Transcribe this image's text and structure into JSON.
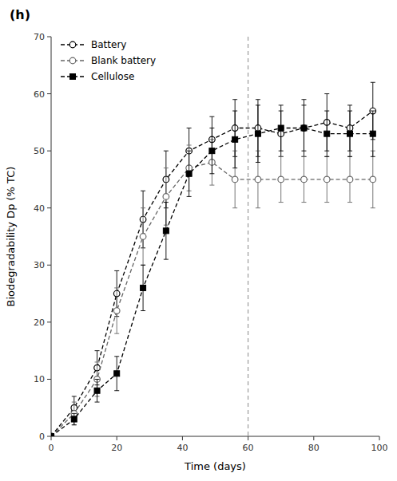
{
  "chart_data": {
    "type": "line",
    "title": "(h)",
    "x_label": "Time (days)",
    "y_label": "Biodegradability Dp (% TC)",
    "x": [
      0,
      7,
      14,
      20,
      28,
      35,
      42,
      49,
      56,
      63,
      70,
      77,
      84,
      91,
      98
    ],
    "series": [
      {
        "name": "Battery",
        "color": "#000000",
        "marker": "open-circle",
        "line_style": "dashed",
        "values": [
          0,
          5,
          12,
          25,
          38,
          45,
          50,
          52,
          54,
          54,
          53,
          54,
          55,
          54,
          57
        ],
        "yerr": [
          0,
          2,
          3,
          4,
          5,
          5,
          4,
          4,
          5,
          5,
          4,
          5,
          5,
          4,
          5
        ]
      },
      {
        "name": "Blank battery",
        "color": "#666666",
        "marker": "open-circle",
        "line_style": "dashed",
        "values": [
          0,
          4,
          10,
          22,
          35,
          42,
          47,
          48,
          45,
          45,
          45,
          45,
          45,
          45,
          45
        ],
        "yerr": [
          0,
          2,
          3,
          4,
          5,
          5,
          4,
          4,
          5,
          5,
          4,
          4,
          4,
          4,
          5
        ]
      },
      {
        "name": "Cellulose",
        "color": "#000000",
        "marker": "square",
        "line_style": "dashed",
        "values": [
          0,
          3,
          8,
          11,
          26,
          36,
          46,
          50,
          52,
          53,
          54,
          54,
          53,
          53,
          53
        ],
        "yerr": [
          0,
          1,
          2,
          3,
          4,
          5,
          4,
          4,
          5,
          5,
          4,
          4,
          4,
          4,
          4
        ]
      }
    ],
    "vlines": [
      60
    ],
    "xlim": [
      0,
      100
    ],
    "xticks": [
      0,
      20,
      40,
      60,
      80,
      100
    ],
    "ylim": [
      0,
      70
    ],
    "yticks": [
      0,
      10,
      20,
      30,
      40,
      50,
      60,
      70
    ],
    "grid": false,
    "legend": "upper left"
  }
}
